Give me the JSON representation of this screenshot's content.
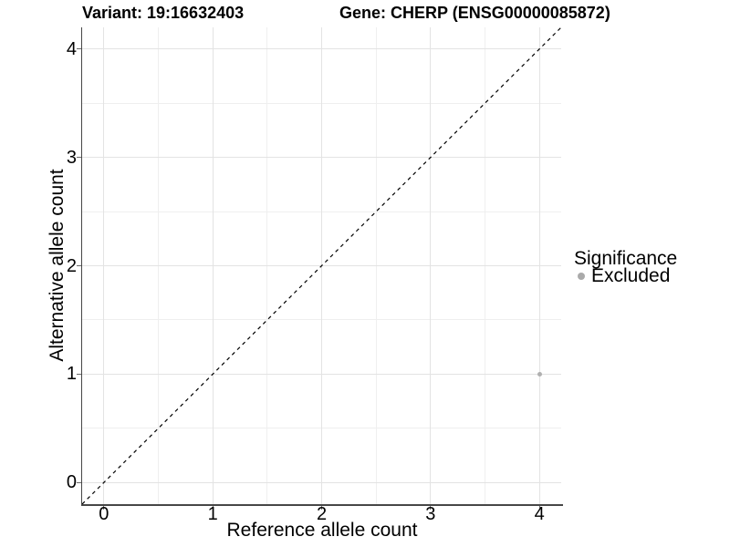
{
  "titles": {
    "variant": "Variant: 19:16632403",
    "gene": "Gene: CHERP (ENSG00000085872)"
  },
  "axes": {
    "x_label": "Reference allele count",
    "y_label": "Alternative allele count"
  },
  "legend": {
    "title": "Significance",
    "items": [
      {
        "label": "Excluded",
        "color": "#aaaaaa"
      }
    ]
  },
  "chart_data": {
    "type": "scatter",
    "title_left": "Variant: 19:16632403",
    "title_right": "Gene: CHERP (ENSG00000085872)",
    "xlabel": "Reference allele count",
    "ylabel": "Alternative allele count",
    "xlim": [
      -0.2,
      4.2
    ],
    "ylim": [
      -0.2,
      4.2
    ],
    "x_ticks": [
      0,
      1,
      2,
      3,
      4
    ],
    "y_ticks": [
      0,
      1,
      2,
      3,
      4
    ],
    "x_minor_ticks": [
      0.5,
      1.5,
      2.5,
      3.5
    ],
    "y_minor_ticks": [
      0.5,
      1.5,
      2.5,
      3.5
    ],
    "grid": true,
    "legend_position": "right",
    "legend_title": "Significance",
    "series": [
      {
        "name": "Excluded",
        "color": "#b0b0b0",
        "points": [
          {
            "x": 4,
            "y": 1
          }
        ]
      }
    ],
    "reference_line": {
      "type": "identity",
      "slope": 1,
      "intercept": 0,
      "style": "dashed",
      "color": "#000000"
    }
  }
}
